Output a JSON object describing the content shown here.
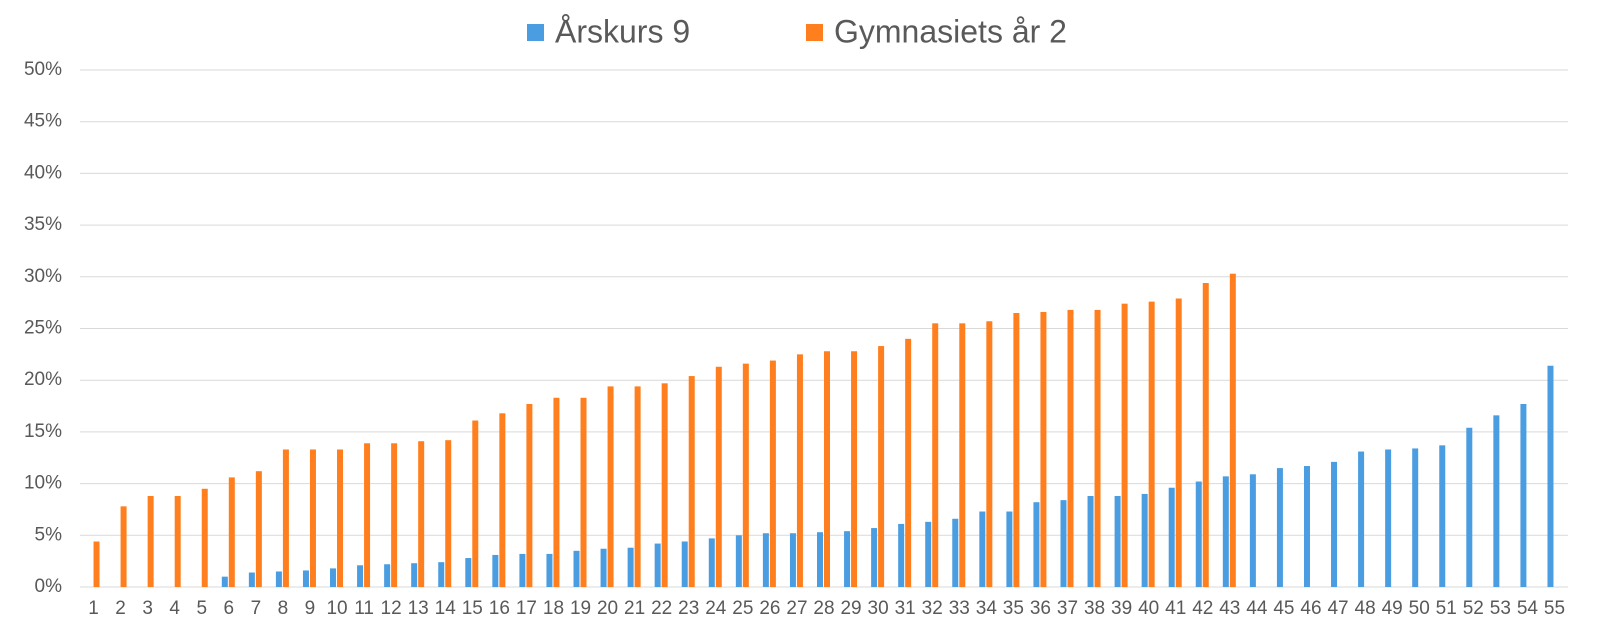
{
  "chart_data": {
    "type": "bar",
    "categories": [
      "1",
      "2",
      "3",
      "4",
      "5",
      "6",
      "7",
      "8",
      "9",
      "10",
      "11",
      "12",
      "13",
      "14",
      "15",
      "16",
      "17",
      "18",
      "19",
      "20",
      "21",
      "22",
      "23",
      "24",
      "25",
      "26",
      "27",
      "28",
      "29",
      "30",
      "31",
      "32",
      "33",
      "34",
      "35",
      "36",
      "37",
      "38",
      "39",
      "40",
      "41",
      "42",
      "43",
      "44",
      "45",
      "46",
      "47",
      "48",
      "49",
      "50",
      "51",
      "52",
      "53",
      "54",
      "55"
    ],
    "series": [
      {
        "name": "Årskurs 9",
        "color": "#4a9de0",
        "values": [
          null,
          null,
          null,
          null,
          null,
          1.0,
          1.4,
          1.5,
          1.6,
          1.8,
          2.1,
          2.2,
          2.3,
          2.4,
          2.8,
          3.1,
          3.2,
          3.2,
          3.5,
          3.7,
          3.8,
          4.2,
          4.4,
          4.7,
          5.0,
          5.2,
          5.2,
          5.3,
          5.4,
          5.7,
          6.1,
          6.3,
          6.6,
          7.3,
          7.3,
          8.2,
          8.4,
          8.8,
          8.8,
          9.0,
          9.6,
          10.2,
          10.7,
          10.9,
          11.5,
          11.7,
          12.1,
          13.1,
          13.3,
          13.4,
          13.7,
          15.4,
          16.6,
          17.7,
          21.4
        ]
      },
      {
        "name": "Gymnasiets år 2",
        "color": "#ff7f1e",
        "values": [
          4.4,
          7.8,
          8.8,
          8.8,
          9.5,
          10.6,
          11.2,
          13.3,
          13.3,
          13.3,
          13.9,
          13.9,
          14.1,
          14.2,
          16.1,
          16.8,
          17.7,
          18.3,
          18.3,
          19.4,
          19.4,
          19.7,
          20.4,
          21.3,
          21.6,
          21.9,
          22.5,
          22.8,
          22.8,
          23.3,
          24.0,
          25.5,
          25.5,
          25.7,
          26.5,
          26.6,
          26.8,
          26.8,
          27.4,
          27.6,
          27.9,
          29.4,
          30.3,
          null,
          null,
          null,
          null,
          null,
          null,
          null,
          null,
          null,
          null,
          null,
          null
        ]
      }
    ],
    "ylim": [
      0,
      50
    ],
    "yticks": [
      {
        "value": 0,
        "label": "0%"
      },
      {
        "value": 5,
        "label": "5%"
      },
      {
        "value": 10,
        "label": "10%"
      },
      {
        "value": 15,
        "label": "15%"
      },
      {
        "value": 20,
        "label": "20%"
      },
      {
        "value": 25,
        "label": "25%"
      },
      {
        "value": 30,
        "label": "30%"
      },
      {
        "value": 35,
        "label": "35%"
      },
      {
        "value": 40,
        "label": "40%"
      },
      {
        "value": 45,
        "label": "45%"
      },
      {
        "value": 50,
        "label": "50%"
      }
    ],
    "grid": true,
    "legend": "top"
  }
}
